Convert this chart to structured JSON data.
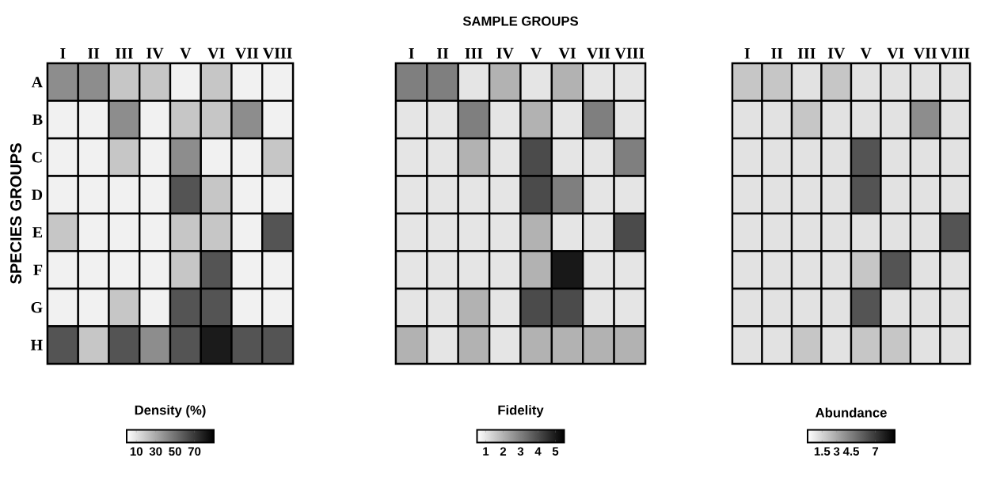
{
  "chart_data": [
    {
      "type": "heatmap",
      "ylabel": "SPECIES GROUPS",
      "categories": [
        "I",
        "II",
        "III",
        "IV",
        "V",
        "VI",
        "VII",
        "VIII"
      ],
      "y_categories": [
        "A",
        "B",
        "C",
        "D",
        "E",
        "F",
        "G",
        "H"
      ],
      "cells": [
        [
          40,
          40,
          20,
          20,
          5,
          20,
          5,
          5
        ],
        [
          5,
          5,
          40,
          5,
          20,
          20,
          40,
          5
        ],
        [
          5,
          5,
          20,
          5,
          40,
          5,
          5,
          20
        ],
        [
          5,
          5,
          5,
          5,
          60,
          20,
          5,
          5
        ],
        [
          20,
          5,
          5,
          5,
          20,
          20,
          5,
          60
        ],
        [
          5,
          5,
          5,
          5,
          20,
          60,
          5,
          5
        ],
        [
          5,
          5,
          20,
          5,
          60,
          60,
          5,
          5
        ],
        [
          60,
          20,
          60,
          40,
          60,
          80,
          60,
          60
        ]
      ],
      "clabel": "Density (%)",
      "clim": [
        0,
        90
      ],
      "cticks": [
        10,
        30,
        50,
        70
      ]
    },
    {
      "type": "heatmap",
      "xlabel": "SAMPLE GROUPS",
      "categories": [
        "I",
        "II",
        "III",
        "IV",
        "V",
        "VI",
        "VII",
        "VIII"
      ],
      "y_categories": [
        null,
        null,
        null,
        null,
        null,
        null,
        null,
        null
      ],
      "tick_labels": "x",
      "cells": [
        [
          3,
          3,
          1,
          2,
          1,
          2,
          1,
          1
        ],
        [
          1,
          1,
          3,
          1,
          2,
          1,
          3,
          1
        ],
        [
          1,
          1,
          2,
          1,
          4,
          1,
          1,
          3
        ],
        [
          1,
          1,
          1,
          1,
          4,
          3,
          1,
          1
        ],
        [
          1,
          1,
          1,
          1,
          2,
          1,
          1,
          4
        ],
        [
          1,
          1,
          1,
          1,
          2,
          5,
          1,
          1
        ],
        [
          1,
          1,
          2,
          1,
          4,
          4,
          1,
          1
        ],
        [
          2,
          1,
          2,
          1,
          2,
          2,
          2,
          2
        ]
      ],
      "clabel": "Fidelity",
      "clim": [
        0.5,
        5.5
      ],
      "cticks": [
        1,
        2,
        3,
        4,
        5
      ]
    },
    {
      "type": "heatmap",
      "categories": [
        "I",
        "II",
        "III",
        "IV",
        "V",
        "VI",
        "VII",
        "VIII"
      ],
      "y_categories": [
        null,
        null,
        null,
        null,
        null,
        null,
        null,
        null
      ],
      "tick_labels": "x",
      "cells": [
        [
          2,
          2,
          1,
          2,
          1,
          1,
          1,
          1
        ],
        [
          1,
          1,
          2,
          1,
          1,
          1,
          4,
          1
        ],
        [
          1,
          1,
          1,
          1,
          6,
          1,
          1,
          1
        ],
        [
          1,
          1,
          1,
          1,
          6,
          1,
          1,
          1
        ],
        [
          1,
          1,
          1,
          1,
          1,
          1,
          1,
          6
        ],
        [
          1,
          1,
          1,
          1,
          2,
          6,
          1,
          1
        ],
        [
          1,
          1,
          1,
          1,
          6,
          1,
          1,
          1
        ],
        [
          1,
          1,
          2,
          1,
          2,
          2,
          1,
          1
        ]
      ],
      "clabel": "Abundance",
      "clim": [
        0,
        9
      ],
      "cticks": [
        1.5,
        3,
        4.5,
        7
      ]
    }
  ]
}
